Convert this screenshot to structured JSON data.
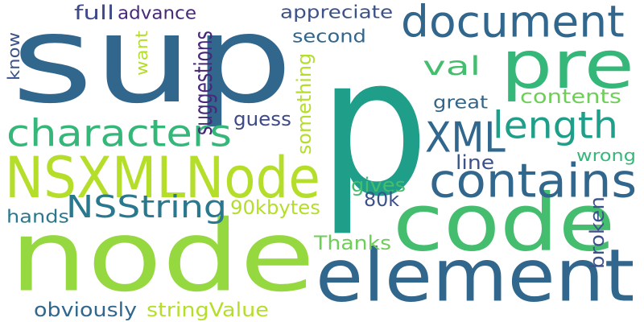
{
  "palette": {
    "dark_blue": "#31668d",
    "teal": "#1f9e89",
    "green": "#35b779",
    "mid_green": "#45bd6e",
    "lime": "#95d840",
    "yellow_green": "#b5de2b",
    "light_green": "#6ece58",
    "purple": "#3e4a89",
    "deep_purple": "#482878",
    "slate": "#3b528b"
  },
  "words": [
    {
      "id": "sup",
      "text": "sup",
      "color": "#31668d"
    },
    {
      "id": "p",
      "text": "p",
      "color": "#1f9e89"
    },
    {
      "id": "node",
      "text": "node",
      "color": "#95d840"
    },
    {
      "id": "pre",
      "text": "pre",
      "color": "#35b779"
    },
    {
      "id": "code",
      "text": "code",
      "color": "#45bd6e"
    },
    {
      "id": "element",
      "text": "element",
      "color": "#31668d"
    },
    {
      "id": "document",
      "text": "document",
      "color": "#31668d"
    },
    {
      "id": "nsxmlnode",
      "text": "NSXMLNode",
      "color": "#b5de2b"
    },
    {
      "id": "contains",
      "text": "contains",
      "color": "#31668d"
    },
    {
      "id": "characters",
      "text": "characters",
      "color": "#35b779"
    },
    {
      "id": "xml",
      "text": "XML",
      "color": "#31668d"
    },
    {
      "id": "length",
      "text": "length",
      "color": "#1f9e89"
    },
    {
      "id": "nsstring",
      "text": "NSString",
      "color": "#2a788e"
    },
    {
      "id": "val",
      "text": "val",
      "color": "#45bd6e"
    },
    {
      "id": "suggestions",
      "text": "suggestions",
      "color": "#482878"
    },
    {
      "id": "full",
      "text": "full",
      "color": "#3e4a89"
    },
    {
      "id": "advance",
      "text": "advance",
      "color": "#482878"
    },
    {
      "id": "appreciate",
      "text": "appreciate",
      "color": "#3b528b"
    },
    {
      "id": "second",
      "text": "second",
      "color": "#31668d"
    },
    {
      "id": "know",
      "text": "know",
      "color": "#3b528b"
    },
    {
      "id": "want",
      "text": "want",
      "color": "#b5de2b"
    },
    {
      "id": "guess",
      "text": "guess",
      "color": "#3e4a89"
    },
    {
      "id": "something",
      "text": "something",
      "color": "#b5de2b"
    },
    {
      "id": "great",
      "text": "great",
      "color": "#31668d"
    },
    {
      "id": "contents",
      "text": "contents",
      "color": "#6ece58"
    },
    {
      "id": "wrong",
      "text": "wrong",
      "color": "#35b779"
    },
    {
      "id": "line",
      "text": "line",
      "color": "#3b528b"
    },
    {
      "id": "gives",
      "text": "gives",
      "color": "#45bd6e"
    },
    {
      "id": "80k",
      "text": "80k",
      "color": "#3b528b"
    },
    {
      "id": "90kbytes",
      "text": "90kbytes",
      "color": "#b5de2b"
    },
    {
      "id": "hands",
      "text": "hands",
      "color": "#2a788e"
    },
    {
      "id": "broken",
      "text": "broken",
      "color": "#3b528b"
    },
    {
      "id": "thanks",
      "text": "Thanks",
      "color": "#6ece58"
    },
    {
      "id": "obviously",
      "text": "obviously",
      "color": "#31668d"
    },
    {
      "id": "stringvalue",
      "text": "stringValue",
      "color": "#b5de2b"
    }
  ]
}
